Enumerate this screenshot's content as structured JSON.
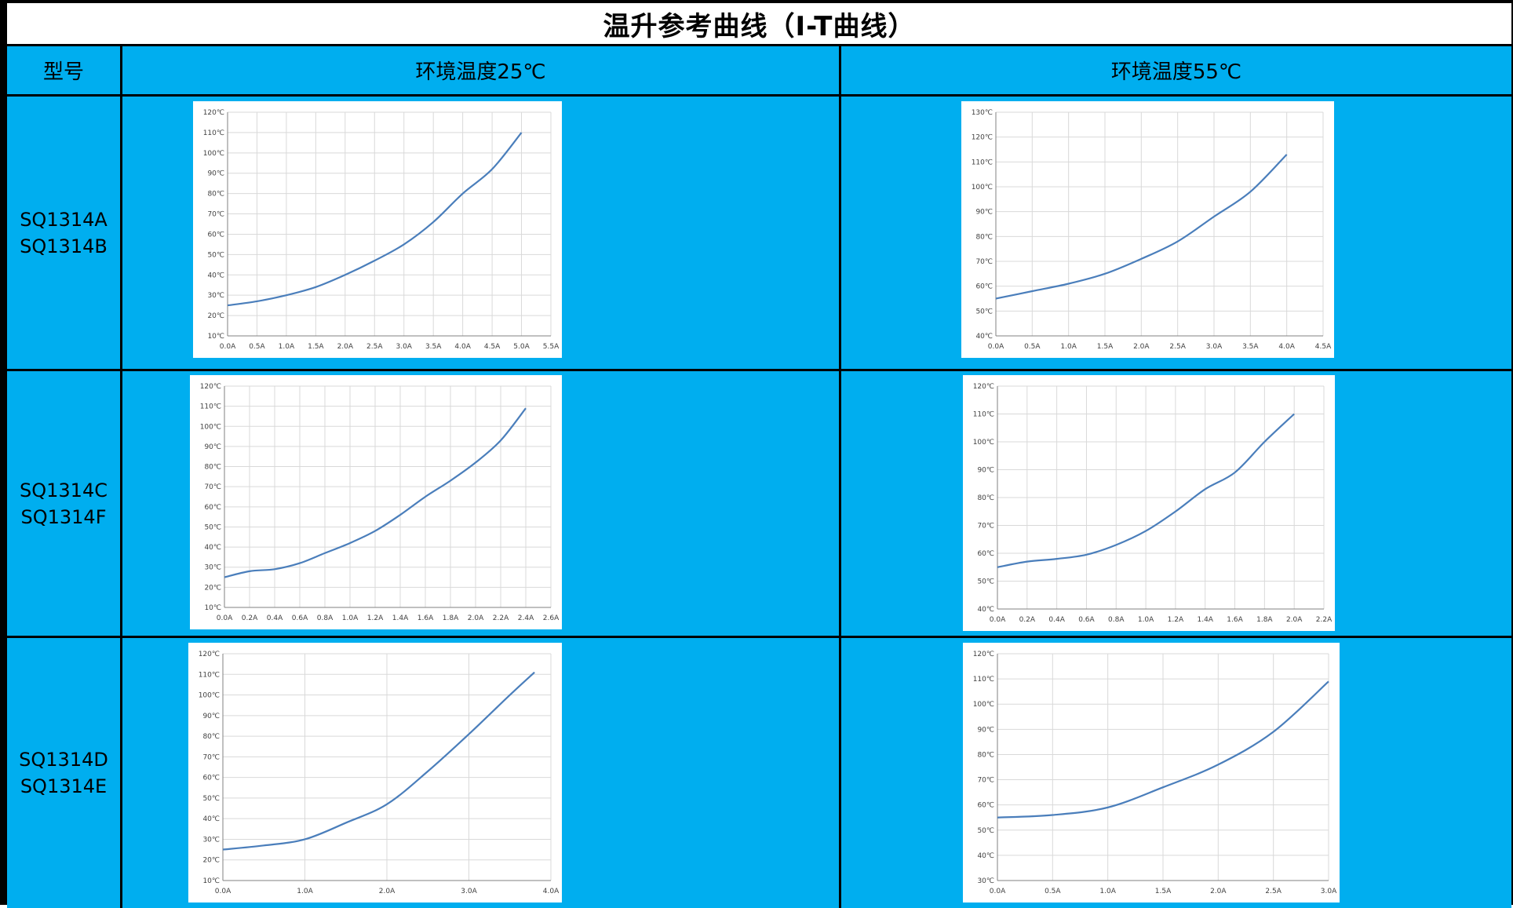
{
  "title": "温升参考曲线（I-T曲线）",
  "header": {
    "model_label": "型号",
    "col1": "环境温度25℃",
    "col2": "环境温度55℃"
  },
  "rows": [
    {
      "models": [
        "SQ1314A",
        "SQ1314B"
      ]
    },
    {
      "models": [
        "SQ1314C",
        "SQ1314F"
      ]
    },
    {
      "models": [
        "SQ1314D",
        "SQ1314E"
      ]
    }
  ],
  "colors": {
    "header_bg": "#00AEEF",
    "line": "#4A7EBB",
    "grid": "#D9D9D9"
  },
  "chart_data": [
    {
      "type": "line",
      "ambient": "25℃",
      "models": "SQ1314A/SQ1314B",
      "x_ticks": [
        "0.0A",
        "0.5A",
        "1.0A",
        "1.5A",
        "2.0A",
        "2.5A",
        "3.0A",
        "3.5A",
        "4.0A",
        "4.5A",
        "5.0A",
        "5.5A"
      ],
      "y_ticks": [
        "10℃",
        "20℃",
        "30℃",
        "40℃",
        "50℃",
        "60℃",
        "70℃",
        "80℃",
        "90℃",
        "100℃",
        "110℃",
        "120℃"
      ],
      "xlim": [
        0,
        5.5
      ],
      "ylim": [
        10,
        120
      ],
      "x": [
        0,
        0.5,
        1.0,
        1.5,
        2.0,
        2.5,
        3.0,
        3.5,
        4.0,
        4.5,
        5.0
      ],
      "y": [
        25,
        27,
        30,
        34,
        40,
        47,
        55,
        66,
        80,
        92,
        110
      ]
    },
    {
      "type": "line",
      "ambient": "55℃",
      "models": "SQ1314A/SQ1314B",
      "x_ticks": [
        "0.0A",
        "0.5A",
        "1.0A",
        "1.5A",
        "2.0A",
        "2.5A",
        "3.0A",
        "3.5A",
        "4.0A",
        "4.5A"
      ],
      "y_ticks": [
        "40℃",
        "50℃",
        "60℃",
        "70℃",
        "80℃",
        "90℃",
        "100℃",
        "110℃",
        "120℃",
        "130℃"
      ],
      "xlim": [
        0,
        4.5
      ],
      "ylim": [
        40,
        130
      ],
      "x": [
        0,
        0.5,
        1.0,
        1.5,
        2.0,
        2.5,
        3.0,
        3.5,
        4.0
      ],
      "y": [
        55,
        58,
        61,
        65,
        71,
        78,
        88,
        98,
        113
      ]
    },
    {
      "type": "line",
      "ambient": "25℃",
      "models": "SQ1314C/SQ1314F",
      "x_ticks": [
        "0.0A",
        "0.2A",
        "0.4A",
        "0.6A",
        "0.8A",
        "1.0A",
        "1.2A",
        "1.4A",
        "1.6A",
        "1.8A",
        "2.0A",
        "2.2A",
        "2.4A",
        "2.6A"
      ],
      "y_ticks": [
        "10℃",
        "20℃",
        "30℃",
        "40℃",
        "50℃",
        "60℃",
        "70℃",
        "80℃",
        "90℃",
        "100℃",
        "110℃",
        "120℃"
      ],
      "xlim": [
        0,
        2.6
      ],
      "ylim": [
        10,
        120
      ],
      "x": [
        0,
        0.2,
        0.4,
        0.6,
        0.8,
        1.0,
        1.2,
        1.4,
        1.6,
        1.8,
        2.0,
        2.2,
        2.4
      ],
      "y": [
        25,
        28,
        29,
        32,
        37,
        42,
        48,
        56,
        65,
        73,
        82,
        93,
        109
      ]
    },
    {
      "type": "line",
      "ambient": "55℃",
      "models": "SQ1314C/SQ1314F",
      "x_ticks": [
        "0.0A",
        "0.2A",
        "0.4A",
        "0.6A",
        "0.8A",
        "1.0A",
        "1.2A",
        "1.4A",
        "1.6A",
        "1.8A",
        "2.0A",
        "2.2A"
      ],
      "y_ticks": [
        "40℃",
        "50℃",
        "60℃",
        "70℃",
        "80℃",
        "90℃",
        "100℃",
        "110℃",
        "120℃"
      ],
      "xlim": [
        0,
        2.2
      ],
      "ylim": [
        40,
        120
      ],
      "x": [
        0,
        0.2,
        0.4,
        0.6,
        0.8,
        1.0,
        1.2,
        1.4,
        1.6,
        1.8,
        2.0
      ],
      "y": [
        55,
        57,
        58,
        59.5,
        63,
        68,
        75,
        83,
        89,
        100,
        110
      ]
    },
    {
      "type": "line",
      "ambient": "25℃",
      "models": "SQ1314D/SQ1314E",
      "x_ticks": [
        "0.0A",
        "1.0A",
        "2.0A",
        "3.0A",
        "4.0A"
      ],
      "y_ticks": [
        "10℃",
        "20℃",
        "30℃",
        "40℃",
        "50℃",
        "60℃",
        "70℃",
        "80℃",
        "90℃",
        "100℃",
        "110℃",
        "120℃"
      ],
      "xlim": [
        0,
        4.0
      ],
      "ylim": [
        10,
        120
      ],
      "x": [
        0,
        0.5,
        1.0,
        1.5,
        2.0,
        2.5,
        3.0,
        3.5,
        3.8
      ],
      "y": [
        25,
        27,
        30,
        38,
        47,
        63,
        81,
        100,
        111
      ]
    },
    {
      "type": "line",
      "ambient": "55℃",
      "models": "SQ1314D/SQ1314E",
      "x_ticks": [
        "0.0A",
        "0.5A",
        "1.0A",
        "1.5A",
        "2.0A",
        "2.5A",
        "3.0A"
      ],
      "y_ticks": [
        "30℃",
        "40℃",
        "50℃",
        "60℃",
        "70℃",
        "80℃",
        "90℃",
        "100℃",
        "110℃",
        "120℃"
      ],
      "xlim": [
        0,
        3.0
      ],
      "ylim": [
        30,
        120
      ],
      "x": [
        0,
        0.5,
        1.0,
        1.5,
        2.0,
        2.5,
        3.0
      ],
      "y": [
        55,
        56,
        59,
        67,
        76,
        89,
        109
      ]
    }
  ]
}
